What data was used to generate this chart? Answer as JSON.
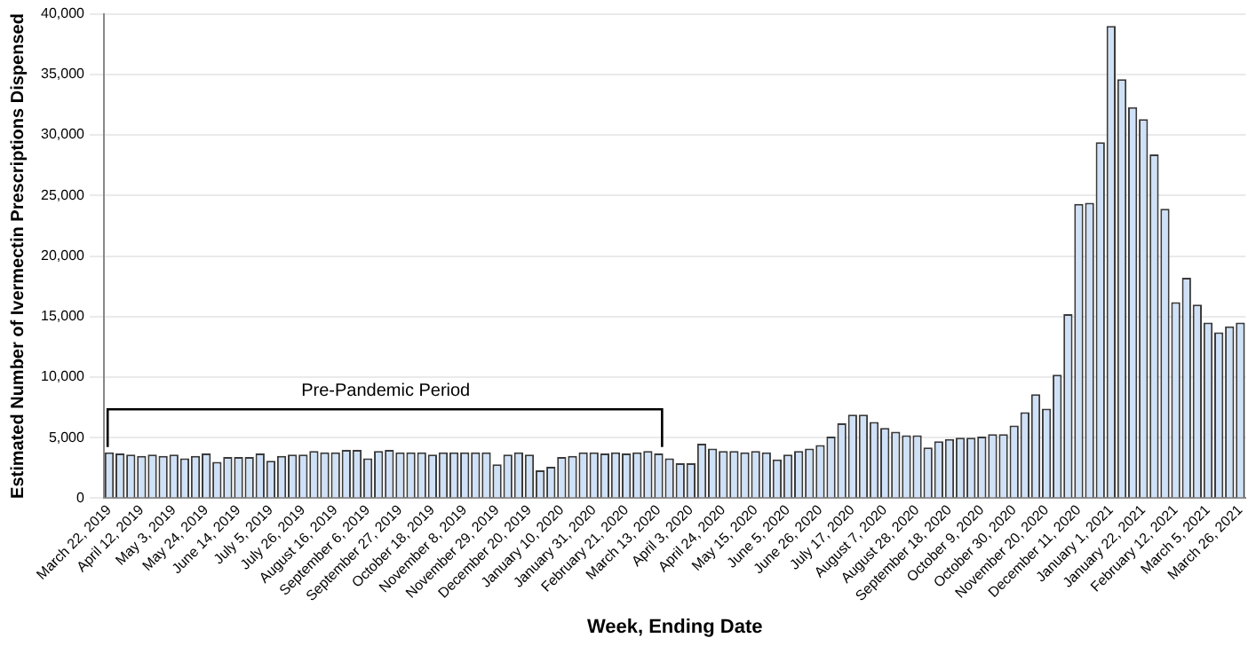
{
  "chart_data": {
    "type": "bar",
    "xlabel": "Week, Ending Date",
    "ylabel": "Estimated Number of Ivermectin Prescriptions Dispensed",
    "categories": [
      "March 22, 2019",
      null,
      null,
      "April 12, 2019",
      null,
      null,
      "May 3, 2019",
      null,
      null,
      "May 24, 2019",
      null,
      null,
      "June 14, 2019",
      null,
      null,
      "July 5, 2019",
      null,
      null,
      "July 26, 2019",
      null,
      null,
      "August 16, 2019",
      null,
      null,
      "September 6, 2019",
      null,
      null,
      "September 27, 2019",
      null,
      null,
      "October 18, 2019",
      null,
      null,
      "November 8, 2019",
      null,
      null,
      "November 29, 2019",
      null,
      null,
      "December 20, 2019",
      null,
      null,
      "January 10, 2020",
      null,
      null,
      "January 31, 2020",
      null,
      null,
      "February 21, 2020",
      null,
      null,
      "March 13, 2020",
      null,
      null,
      "April 3, 2020",
      null,
      null,
      "April 24, 2020",
      null,
      null,
      "May 15, 2020",
      null,
      null,
      "June 5, 2020",
      null,
      null,
      "June 26, 2020",
      null,
      null,
      "July 17, 2020",
      null,
      null,
      "August 7, 2020",
      null,
      null,
      "August 28, 2020",
      null,
      null,
      "September 18, 2020",
      null,
      null,
      "October 9, 2020",
      null,
      null,
      "October 30, 2020",
      null,
      null,
      "November 20, 2020",
      null,
      null,
      "December 11, 2020",
      null,
      null,
      "January 1, 2021",
      null,
      null,
      "January 22, 2021",
      null,
      null,
      "February 12, 2021",
      null,
      null,
      "March 5, 2021",
      null,
      null,
      "March 26, 2021"
    ],
    "values": [
      3800,
      3700,
      3600,
      3500,
      3600,
      3500,
      3600,
      3300,
      3500,
      3700,
      3000,
      3400,
      3400,
      3400,
      3700,
      3100,
      3500,
      3600,
      3600,
      3900,
      3800,
      3800,
      4000,
      4000,
      3300,
      3900,
      4000,
      3800,
      3800,
      3800,
      3600,
      3800,
      3800,
      3800,
      3800,
      3800,
      2800,
      3600,
      3800,
      3600,
      2300,
      2600,
      3400,
      3500,
      3800,
      3800,
      3700,
      3800,
      3700,
      3800,
      3900,
      3700,
      3300,
      2900,
      2900,
      4500,
      4100,
      3900,
      3900,
      3800,
      3900,
      3800,
      3200,
      3600,
      3900,
      4100,
      4400,
      5100,
      6200,
      6900,
      6900,
      6300,
      5800,
      5500,
      5200,
      5200,
      4200,
      4700,
      4900,
      5000,
      5000,
      5100,
      5300,
      5300,
      6000,
      7100,
      8600,
      7400,
      10200,
      15200,
      24300,
      24400,
      29400,
      39000,
      34600,
      32300,
      31300,
      28400,
      23900,
      16200,
      18200,
      16000,
      14500,
      13700,
      14200,
      14500
    ],
    "color": "#cfe1f7",
    "ylim": [
      0,
      40000
    ],
    "yticks": [
      {
        "value": 0,
        "label": "0"
      },
      {
        "value": 5000,
        "label": "5,000"
      },
      {
        "value": 10000,
        "label": "10,000"
      },
      {
        "value": 15000,
        "label": "15,000"
      },
      {
        "value": 20000,
        "label": "20,000"
      },
      {
        "value": 25000,
        "label": "25,000"
      },
      {
        "value": 30000,
        "label": "30,000"
      },
      {
        "value": 35000,
        "label": "35,000"
      },
      {
        "value": 40000,
        "label": "40,000"
      }
    ],
    "grid": "y",
    "annotations": [
      "Pre-Pandemic Period"
    ]
  }
}
